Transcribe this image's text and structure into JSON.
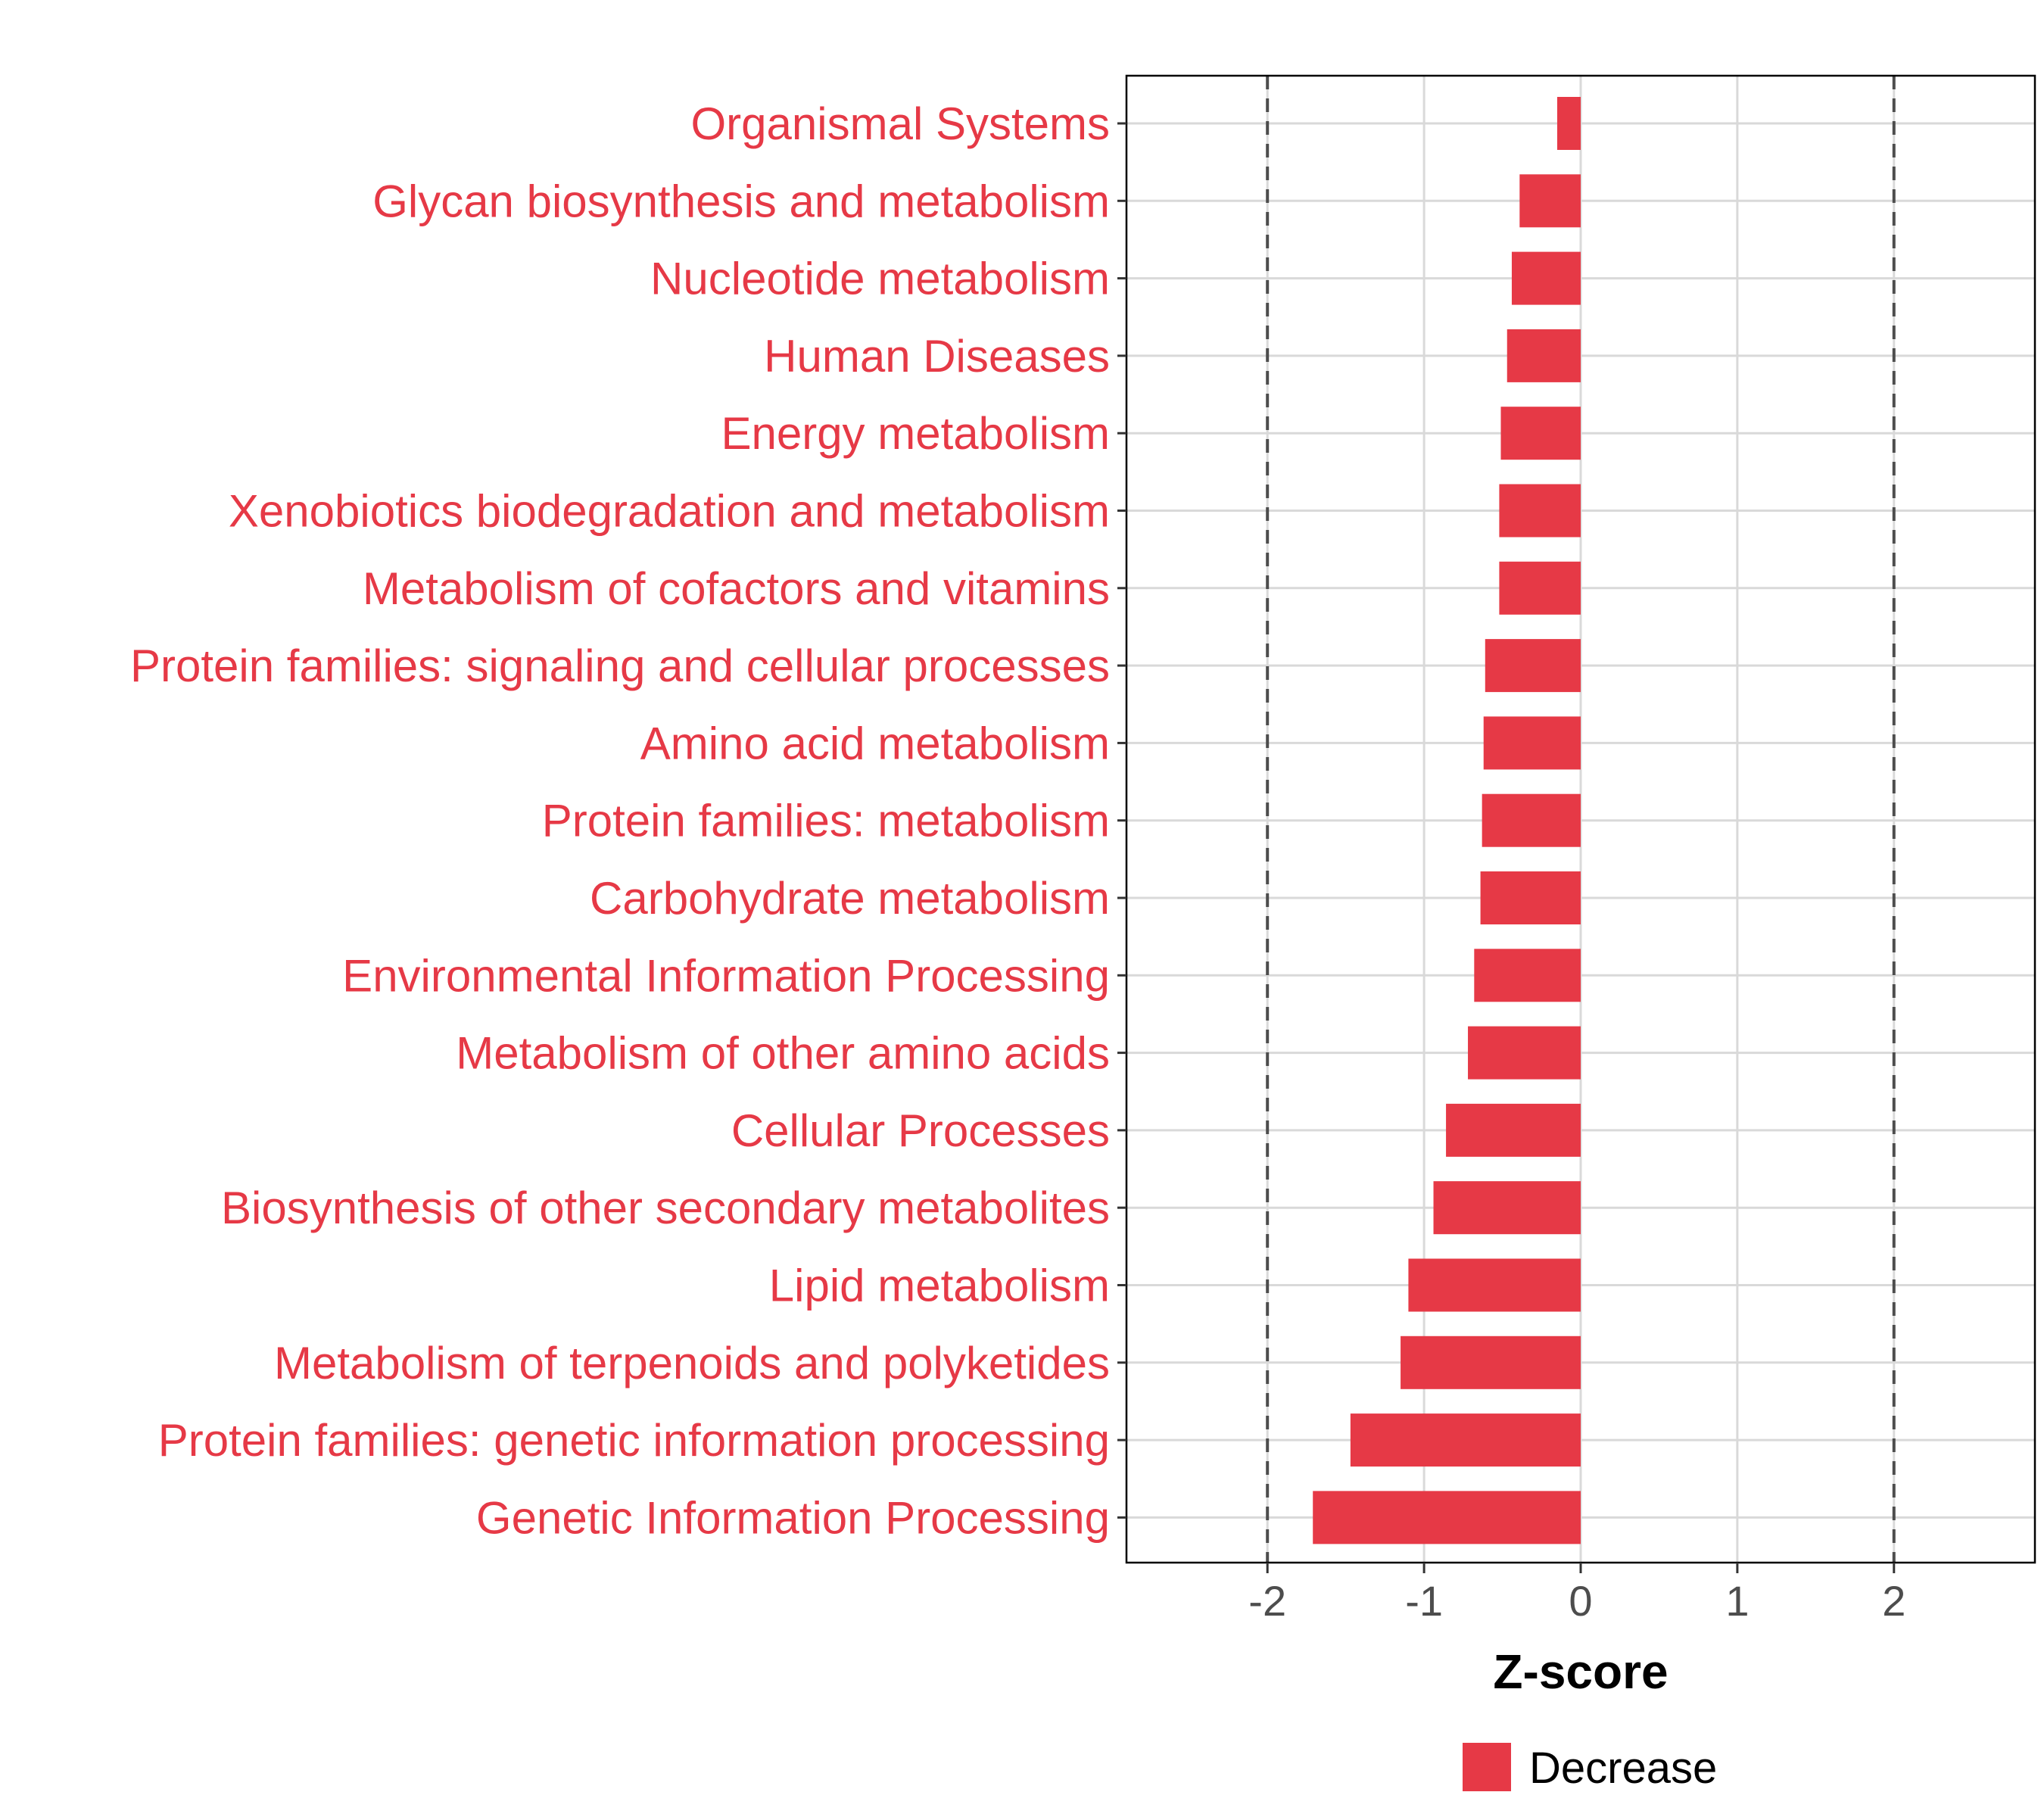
{
  "chart_data": {
    "type": "bar",
    "orientation": "horizontal",
    "title": "",
    "xlabel": "Z-score",
    "ylabel": "",
    "xlim": [
      -2.9,
      2.9
    ],
    "xticks": [
      -2,
      -1,
      0,
      1,
      2
    ],
    "xtick_labels": [
      "-2",
      "-1",
      "0",
      "1",
      "2"
    ],
    "reference_lines": [
      -2,
      2
    ],
    "grid": true,
    "categories": [
      "Organismal Systems",
      "Glycan biosynthesis and metabolism",
      "Nucleotide metabolism",
      "Human Diseases",
      "Energy metabolism",
      "Xenobiotics biodegradation and metabolism",
      "Metabolism of cofactors and vitamins",
      "Protein families: signaling and cellular processes",
      "Amino acid metabolism",
      "Protein families: metabolism",
      "Carbohydrate metabolism",
      "Environmental Information Processing",
      "Metabolism of other amino acids",
      "Cellular Processes",
      "Biosynthesis of other secondary metabolites",
      "Lipid metabolism",
      "Metabolism of terpenoids and polyketides",
      "Protein families: genetic information processing",
      "Genetic Information Processing"
    ],
    "values": [
      -0.15,
      -0.39,
      -0.44,
      -0.47,
      -0.51,
      -0.52,
      -0.52,
      -0.61,
      -0.62,
      -0.63,
      -0.64,
      -0.68,
      -0.72,
      -0.86,
      -0.94,
      -1.1,
      -1.15,
      -1.47,
      -1.71
    ],
    "series": [
      {
        "name": "Decrease",
        "color": "#E63946"
      }
    ],
    "legend": {
      "position": "bottom",
      "entries": [
        "Decrease"
      ]
    },
    "colors": {
      "bar": "#E63946",
      "label": "#E63946",
      "grid": "#d9d9d9",
      "reference_line": "#4d4d4d"
    }
  }
}
